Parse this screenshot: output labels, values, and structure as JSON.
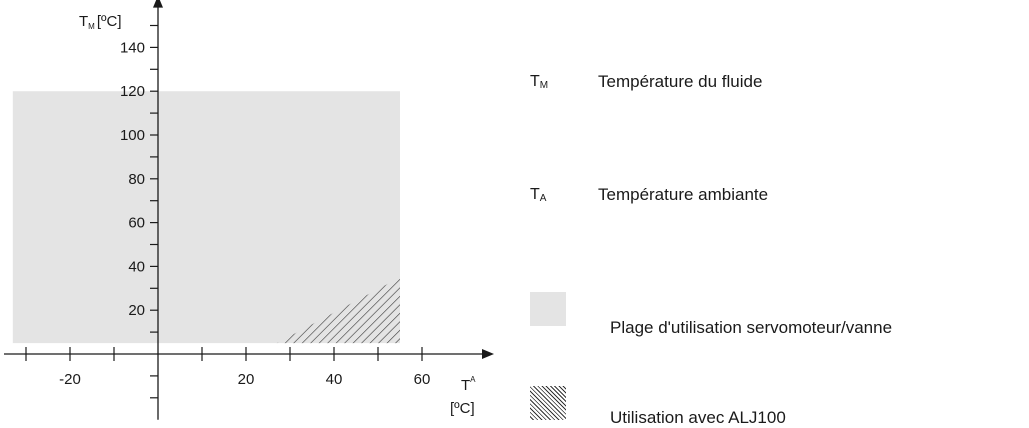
{
  "chart_data": {
    "type": "area",
    "x_axis": {
      "label": "T",
      "label_sub": "A",
      "unit": "[ºC]",
      "ticks": [
        -20,
        20,
        40,
        60
      ],
      "minor_ticks": [
        -30,
        -10,
        0,
        10,
        30,
        50
      ],
      "range": [
        -35,
        75
      ]
    },
    "y_axis": {
      "label": "T",
      "label_sub": "M",
      "unit": "[ºC]",
      "ticks": [
        20,
        40,
        60,
        80,
        100,
        120,
        140
      ],
      "minor_ticks": [
        -20,
        -10,
        0,
        10,
        30,
        50,
        70,
        90,
        110,
        130,
        150
      ],
      "range": [
        -30,
        160
      ]
    },
    "regions": [
      {
        "name": "Plage d'utilisation servomoteur/vanne",
        "fill": "#e4e4e4",
        "polygon": [
          [
            -33,
            5
          ],
          [
            55,
            5
          ],
          [
            55,
            120
          ],
          [
            -33,
            120
          ]
        ]
      },
      {
        "name": "Utilisation avec ALJ100",
        "pattern": "hatch",
        "polygon": [
          [
            27,
            5
          ],
          [
            55,
            5
          ],
          [
            55,
            35
          ]
        ]
      }
    ],
    "grid": false
  },
  "legend": [
    {
      "symbol": "T",
      "symbol_sub": "M",
      "text": "Température du fluide"
    },
    {
      "symbol": "T",
      "symbol_sub": "A",
      "text": "Température ambiante"
    },
    {
      "swatch": "gray",
      "text": "Plage d'utilisation servomoteur/vanne"
    },
    {
      "swatch": "hatch",
      "text": "Utilisation avec ALJ100"
    }
  ],
  "colors": {
    "region": "#e4e4e4",
    "axis": "#1a1a1a",
    "hatch": "#333333"
  }
}
